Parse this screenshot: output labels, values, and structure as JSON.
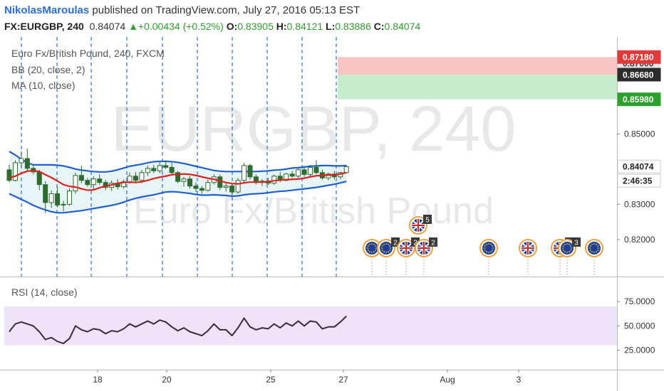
{
  "header": {
    "author": "NikolasMaroulas",
    "published": "published on TradingView.com, July 27, 2016 05:13 EST",
    "symbol": "FX:EURGBP, 240",
    "last": "0.84074",
    "change": "+0.00434 (+0.52%)",
    "o_label": "O:",
    "o_value": "0.83905",
    "h_label": "H:",
    "h_value": "0.84121",
    "l_label": "L:",
    "l_value": "0.83886",
    "c_label": "C:",
    "c_value": "0.84074"
  },
  "legend": {
    "title": "Euro Fx/British Pound, 240, FXCM",
    "bb": "BB (20, close, 2)",
    "ma": "MA (10, close)",
    "rsi": "RSI (14, close)"
  },
  "watermark": {
    "line1": "EURGBP, 240",
    "line2": "Euro Fx/British Pound"
  },
  "colors": {
    "candle": "#2e6b2e",
    "bb_band": "#1f5fd0",
    "ma": "#e02020",
    "rsi": "#3a2a45",
    "stop_zone": "#f9c4c4",
    "target_zone": "#c6eccb",
    "event_line": "#2a6fd8",
    "price_tag": "#2c2c2c"
  },
  "price_labels": [
    {
      "value": "0.87180",
      "kind": "stop"
    },
    {
      "value": "0.87000",
      "kind": "partial"
    },
    {
      "value": "0.86680",
      "kind": "entry"
    },
    {
      "value": "0.85980",
      "kind": "target"
    },
    {
      "value": "0.84074",
      "kind": "last"
    },
    {
      "value": "2:46:35",
      "kind": "countdown"
    }
  ],
  "events": [
    {
      "icon": "eu-flag-icon",
      "count": ""
    },
    {
      "icon": "eu-flag-icon",
      "count": "2"
    },
    {
      "icon": "uk-flag-icon",
      "count": "2"
    },
    {
      "icon": "uk-flag-icon",
      "count": "2"
    },
    {
      "icon": "uk-flag-icon",
      "count": "5"
    },
    {
      "icon": "eu-flag-icon",
      "count": ""
    },
    {
      "icon": "uk-flag-icon",
      "count": ""
    },
    {
      "icon": "uk-flag-icon",
      "count": "2"
    },
    {
      "icon": "eu-flag-icon",
      "count": "3"
    },
    {
      "icon": "eu-flag-icon",
      "count": ""
    }
  ],
  "chart_data": {
    "type": "candlestick",
    "title": "Euro Fx/British Pound, 240, FXCM",
    "x_ticks": [
      "18",
      "20",
      "25",
      "27",
      "Aug",
      "3"
    ],
    "y_ticks": [
      "0.85000",
      "0.84000",
      "0.83000",
      "0.82000"
    ],
    "ylim": [
      0.8095,
      0.8775
    ],
    "rsi_ticks": [
      "75.0000",
      "50.0000",
      "25.0000"
    ],
    "rsi_ylim": [
      5,
      100
    ],
    "rsi_band": [
      30,
      70
    ],
    "last_price": 0.84074,
    "zones": {
      "stop": 0.8718,
      "entry": 0.8668,
      "target": 0.8598
    },
    "candles": [
      {
        "o": 0.8398,
        "h": 0.8412,
        "l": 0.8362,
        "c": 0.8368
      },
      {
        "o": 0.8368,
        "h": 0.8425,
        "l": 0.8365,
        "c": 0.8418
      },
      {
        "o": 0.8418,
        "h": 0.845,
        "l": 0.8405,
        "c": 0.843
      },
      {
        "o": 0.843,
        "h": 0.8458,
        "l": 0.8396,
        "c": 0.8402
      },
      {
        "o": 0.8402,
        "h": 0.8412,
        "l": 0.8385,
        "c": 0.8392
      },
      {
        "o": 0.8392,
        "h": 0.8398,
        "l": 0.834,
        "c": 0.8356
      },
      {
        "o": 0.8356,
        "h": 0.8366,
        "l": 0.8275,
        "c": 0.8305
      },
      {
        "o": 0.8305,
        "h": 0.834,
        "l": 0.829,
        "c": 0.833
      },
      {
        "o": 0.833,
        "h": 0.835,
        "l": 0.8292,
        "c": 0.8298
      },
      {
        "o": 0.8298,
        "h": 0.831,
        "l": 0.828,
        "c": 0.83
      },
      {
        "o": 0.83,
        "h": 0.8345,
        "l": 0.8296,
        "c": 0.8338
      },
      {
        "o": 0.8338,
        "h": 0.839,
        "l": 0.833,
        "c": 0.8382
      },
      {
        "o": 0.8382,
        "h": 0.841,
        "l": 0.836,
        "c": 0.8368
      },
      {
        "o": 0.8368,
        "h": 0.8375,
        "l": 0.835,
        "c": 0.8356
      },
      {
        "o": 0.8356,
        "h": 0.838,
        "l": 0.834,
        "c": 0.8372
      },
      {
        "o": 0.8372,
        "h": 0.8385,
        "l": 0.8355,
        "c": 0.8362
      },
      {
        "o": 0.8362,
        "h": 0.837,
        "l": 0.834,
        "c": 0.8348
      },
      {
        "o": 0.8348,
        "h": 0.8368,
        "l": 0.8338,
        "c": 0.836
      },
      {
        "o": 0.836,
        "h": 0.8372,
        "l": 0.8342,
        "c": 0.835
      },
      {
        "o": 0.835,
        "h": 0.837,
        "l": 0.8345,
        "c": 0.8364
      },
      {
        "o": 0.8364,
        "h": 0.839,
        "l": 0.8358,
        "c": 0.838
      },
      {
        "o": 0.838,
        "h": 0.8392,
        "l": 0.8362,
        "c": 0.8368
      },
      {
        "o": 0.8368,
        "h": 0.8398,
        "l": 0.836,
        "c": 0.839
      },
      {
        "o": 0.839,
        "h": 0.841,
        "l": 0.838,
        "c": 0.8402
      },
      {
        "o": 0.8402,
        "h": 0.8412,
        "l": 0.8388,
        "c": 0.8395
      },
      {
        "o": 0.8395,
        "h": 0.842,
        "l": 0.8388,
        "c": 0.841
      },
      {
        "o": 0.841,
        "h": 0.8425,
        "l": 0.84,
        "c": 0.8405
      },
      {
        "o": 0.8405,
        "h": 0.8418,
        "l": 0.8382,
        "c": 0.839
      },
      {
        "o": 0.839,
        "h": 0.8395,
        "l": 0.836,
        "c": 0.8365
      },
      {
        "o": 0.8365,
        "h": 0.8378,
        "l": 0.835,
        "c": 0.8372
      },
      {
        "o": 0.8372,
        "h": 0.838,
        "l": 0.8345,
        "c": 0.8352
      },
      {
        "o": 0.8352,
        "h": 0.8362,
        "l": 0.8335,
        "c": 0.8345
      },
      {
        "o": 0.8345,
        "h": 0.8352,
        "l": 0.833,
        "c": 0.834
      },
      {
        "o": 0.834,
        "h": 0.837,
        "l": 0.8336,
        "c": 0.8362
      },
      {
        "o": 0.8362,
        "h": 0.8385,
        "l": 0.8356,
        "c": 0.8378
      },
      {
        "o": 0.8378,
        "h": 0.8385,
        "l": 0.834,
        "c": 0.8348
      },
      {
        "o": 0.8348,
        "h": 0.836,
        "l": 0.8336,
        "c": 0.8352
      },
      {
        "o": 0.8352,
        "h": 0.836,
        "l": 0.8325,
        "c": 0.8335
      },
      {
        "o": 0.8335,
        "h": 0.8375,
        "l": 0.833,
        "c": 0.8368
      },
      {
        "o": 0.8368,
        "h": 0.8418,
        "l": 0.8362,
        "c": 0.841
      },
      {
        "o": 0.841,
        "h": 0.8415,
        "l": 0.837,
        "c": 0.8378
      },
      {
        "o": 0.8378,
        "h": 0.8385,
        "l": 0.8356,
        "c": 0.8362
      },
      {
        "o": 0.8362,
        "h": 0.8372,
        "l": 0.8352,
        "c": 0.8366
      },
      {
        "o": 0.8366,
        "h": 0.8375,
        "l": 0.8355,
        "c": 0.836
      },
      {
        "o": 0.836,
        "h": 0.8385,
        "l": 0.8355,
        "c": 0.838
      },
      {
        "o": 0.838,
        "h": 0.8392,
        "l": 0.8362,
        "c": 0.8368
      },
      {
        "o": 0.8368,
        "h": 0.839,
        "l": 0.8365,
        "c": 0.8386
      },
      {
        "o": 0.8386,
        "h": 0.8395,
        "l": 0.8375,
        "c": 0.838
      },
      {
        "o": 0.838,
        "h": 0.8402,
        "l": 0.8375,
        "c": 0.8398
      },
      {
        "o": 0.8398,
        "h": 0.8405,
        "l": 0.8378,
        "c": 0.8385
      },
      {
        "o": 0.8385,
        "h": 0.8412,
        "l": 0.838,
        "c": 0.8405
      },
      {
        "o": 0.8405,
        "h": 0.8425,
        "l": 0.8385,
        "c": 0.839
      },
      {
        "o": 0.839,
        "h": 0.8398,
        "l": 0.837,
        "c": 0.8375
      },
      {
        "o": 0.8375,
        "h": 0.839,
        "l": 0.8368,
        "c": 0.8386
      },
      {
        "o": 0.8386,
        "h": 0.8395,
        "l": 0.837,
        "c": 0.8378
      },
      {
        "o": 0.8378,
        "h": 0.8392,
        "l": 0.8372,
        "c": 0.839
      },
      {
        "o": 0.839,
        "h": 0.8412,
        "l": 0.8388,
        "c": 0.8407
      }
    ],
    "bb_upper": [
      0.845,
      0.844,
      0.8428,
      0.8418,
      0.8412,
      0.8412,
      0.8412,
      0.8412,
      0.8411,
      0.8409,
      0.8405,
      0.84,
      0.8397,
      0.8395,
      0.8393,
      0.8392,
      0.8392,
      0.8394,
      0.8398,
      0.8403,
      0.8408,
      0.8411,
      0.8414,
      0.8418,
      0.8421,
      0.8422,
      0.8422,
      0.8421,
      0.8419,
      0.8416,
      0.8412,
      0.8408,
      0.8404,
      0.84,
      0.8396,
      0.8394,
      0.8393,
      0.8393,
      0.8393,
      0.8393,
      0.8393,
      0.8393,
      0.8394,
      0.8395,
      0.8397,
      0.8398,
      0.84,
      0.8403,
      0.8404,
      0.8406,
      0.8408,
      0.8409,
      0.841,
      0.841,
      0.8409,
      0.8409,
      0.841
    ],
    "bb_lower": [
      0.833,
      0.8322,
      0.8314,
      0.8306,
      0.8297,
      0.829,
      0.8284,
      0.8279,
      0.8276,
      0.8276,
      0.8278,
      0.828,
      0.8282,
      0.8285,
      0.8288,
      0.8291,
      0.8294,
      0.8297,
      0.8301,
      0.8306,
      0.8312,
      0.8317,
      0.8321,
      0.8324,
      0.8327,
      0.8331,
      0.8335,
      0.8336,
      0.8335,
      0.8333,
      0.8331,
      0.8328,
      0.8326,
      0.8326,
      0.8327,
      0.8326,
      0.8325,
      0.8323,
      0.8324,
      0.8327,
      0.8329,
      0.833,
      0.8331,
      0.8333,
      0.8335,
      0.8337,
      0.8338,
      0.834,
      0.8342,
      0.8344,
      0.8346,
      0.8348,
      0.8351,
      0.8354,
      0.8357,
      0.8361,
      0.8365
    ],
    "ma": [
      0.8375,
      0.838,
      0.8388,
      0.8394,
      0.8396,
      0.8393,
      0.8384,
      0.8376,
      0.8366,
      0.8356,
      0.8351,
      0.8349,
      0.8344,
      0.834,
      0.8341,
      0.8347,
      0.8352,
      0.8355,
      0.836,
      0.8362,
      0.8363,
      0.8362,
      0.8364,
      0.8368,
      0.8373,
      0.8377,
      0.838,
      0.8384,
      0.8385,
      0.8386,
      0.8385,
      0.8382,
      0.8378,
      0.8374,
      0.8371,
      0.8366,
      0.8362,
      0.8359,
      0.8358,
      0.8361,
      0.8363,
      0.8363,
      0.8363,
      0.8364,
      0.8367,
      0.8369,
      0.837,
      0.8371,
      0.8372,
      0.8374,
      0.8378,
      0.8381,
      0.8382,
      0.8383,
      0.8384,
      0.8386,
      0.839
    ],
    "rsi": [
      44,
      52,
      54,
      52,
      50,
      44,
      36,
      38,
      34,
      32,
      37,
      50,
      46,
      44,
      47,
      46,
      42,
      45,
      44,
      47,
      52,
      49,
      52,
      55,
      52,
      56,
      54,
      49,
      45,
      48,
      44,
      42,
      40,
      45,
      52,
      46,
      46,
      40,
      48,
      58,
      49,
      46,
      48,
      47,
      52,
      48,
      53,
      50,
      55,
      50,
      55,
      54,
      47,
      49,
      49,
      54,
      60
    ]
  }
}
